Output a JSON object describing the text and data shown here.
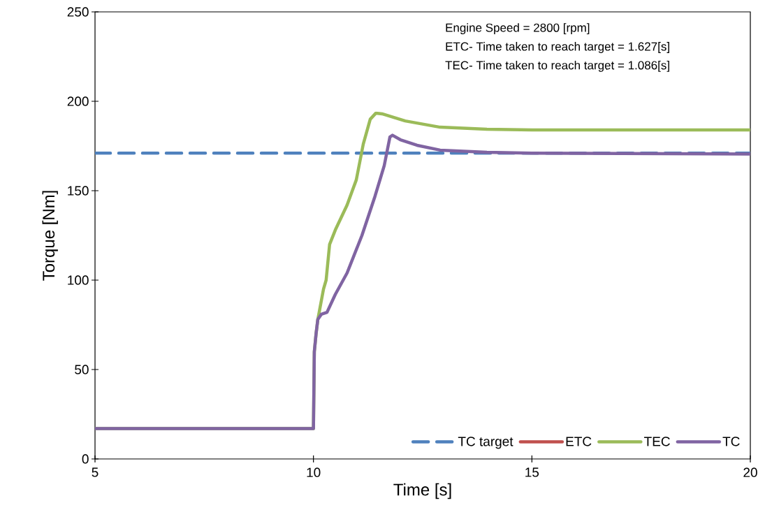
{
  "chart_data": {
    "type": "line",
    "xlabel": "Time [s]",
    "ylabel": "Torque [Nm]",
    "annotations": [
      "Engine Speed = 2800 [rpm]",
      "ETC- Time taken to reach target  = 1.627[s]",
      "TEC- Time taken to reach target  = 1.086[s]"
    ],
    "xlim": [
      5,
      20
    ],
    "ylim": [
      0,
      250
    ],
    "xticks": [
      5,
      10,
      15,
      20
    ],
    "yticks": [
      0,
      50,
      100,
      150,
      200,
      250
    ],
    "legend": "bottom right",
    "marker": "none",
    "series": [
      {
        "name": "TC target",
        "color": "#4f81bd",
        "line_style": "dashed",
        "x": [
          5,
          20
        ],
        "values": [
          171,
          171
        ]
      },
      {
        "name": "ETC",
        "color": "#c0504d"
      },
      {
        "name": "TEC",
        "color": "#9bbb59",
        "x": [
          5,
          10,
          10.02,
          10.06,
          10.1,
          10.23,
          10.29,
          10.37,
          10.5,
          10.77,
          10.98,
          11.14,
          11.3,
          11.43,
          11.57,
          12.1,
          12.9,
          13.97,
          15,
          20
        ],
        "values": [
          17,
          17,
          60,
          70,
          78,
          95,
          100,
          120,
          128,
          142,
          156,
          176,
          190,
          193.4,
          193,
          189,
          185.5,
          184.4,
          184,
          184
        ]
      },
      {
        "name": "TC",
        "color": "#8064a2",
        "x": [
          5,
          10,
          10.02,
          10.06,
          10.1,
          10.18,
          10.31,
          10.5,
          10.77,
          11.11,
          11.41,
          11.62,
          11.75,
          11.81,
          11.99,
          12.37,
          12.9,
          13.97,
          15,
          20
        ],
        "values": [
          17,
          17,
          60,
          70,
          78,
          80.9,
          82,
          92,
          104,
          125,
          147,
          164,
          180,
          181,
          178.5,
          175.4,
          172.7,
          171.5,
          171,
          170.5
        ]
      }
    ]
  }
}
